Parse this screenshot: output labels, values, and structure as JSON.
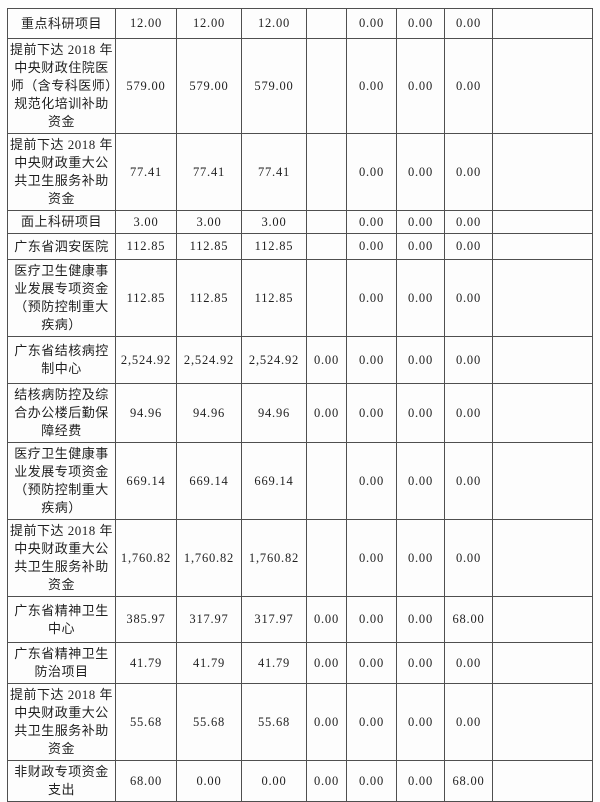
{
  "document": {
    "type": "financial-table-fragment",
    "language": "zh-CN",
    "description_note": ""
  },
  "colors": {
    "border": "#4f4f4f",
    "text": "#1f1f1f",
    "background": "#fdfdfd"
  },
  "table": {
    "column_count": 9,
    "rows": [
      {
        "cells": [
          "重点科研项目",
          "12.00",
          "12.00",
          "12.00",
          "",
          "0.00",
          "0.00",
          "0.00",
          ""
        ]
      },
      {
        "cells": [
          "提前下达 2018 年中央财政住院医师（含专科医师）规范化培训补助资金",
          "579.00",
          "579.00",
          "579.00",
          "",
          "0.00",
          "0.00",
          "0.00",
          ""
        ]
      },
      {
        "cells": [
          "提前下达 2018 年中央财政重大公共卫生服务补助资金",
          "77.41",
          "77.41",
          "77.41",
          "",
          "0.00",
          "0.00",
          "0.00",
          ""
        ]
      },
      {
        "cells": [
          "面上科研项目",
          "3.00",
          "3.00",
          "3.00",
          "",
          "0.00",
          "0.00",
          "0.00",
          ""
        ]
      },
      {
        "cells": [
          "广东省泗安医院",
          "112.85",
          "112.85",
          "112.85",
          "",
          "0.00",
          "0.00",
          "0.00",
          ""
        ]
      },
      {
        "cells": [
          "医疗卫生健康事业发展专项资金（预防控制重大疾病）",
          "112.85",
          "112.85",
          "112.85",
          "",
          "0.00",
          "0.00",
          "0.00",
          ""
        ]
      },
      {
        "cells": [
          "广东省结核病控制中心",
          "2,524.92",
          "2,524.92",
          "2,524.92",
          "0.00",
          "0.00",
          "0.00",
          "0.00",
          ""
        ]
      },
      {
        "cells": [
          "结核病防控及综合办公楼后勤保障经费",
          "94.96",
          "94.96",
          "94.96",
          "0.00",
          "0.00",
          "0.00",
          "0.00",
          ""
        ]
      },
      {
        "cells": [
          "医疗卫生健康事业发展专项资金（预防控制重大疾病）",
          "669.14",
          "669.14",
          "669.14",
          "",
          "0.00",
          "0.00",
          "0.00",
          ""
        ]
      },
      {
        "cells": [
          "提前下达 2018 年中央财政重大公共卫生服务补助资金",
          "1,760.82",
          "1,760.82",
          "1,760.82",
          "",
          "0.00",
          "0.00",
          "0.00",
          ""
        ]
      },
      {
        "cells": [
          "广东省精神卫生中心",
          "385.97",
          "317.97",
          "317.97",
          "0.00",
          "0.00",
          "0.00",
          "68.00",
          ""
        ]
      },
      {
        "cells": [
          "广东省精神卫生防治项目",
          "41.79",
          "41.79",
          "41.79",
          "0.00",
          "0.00",
          "0.00",
          "0.00",
          ""
        ]
      },
      {
        "cells": [
          "提前下达 2018 年中央财政重大公共卫生服务补助资金",
          "55.68",
          "55.68",
          "55.68",
          "0.00",
          "0.00",
          "0.00",
          "0.00",
          ""
        ]
      },
      {
        "cells": [
          "非财政专项资金支出",
          "68.00",
          "0.00",
          "0.00",
          "0.00",
          "0.00",
          "0.00",
          "68.00",
          ""
        ]
      }
    ]
  }
}
